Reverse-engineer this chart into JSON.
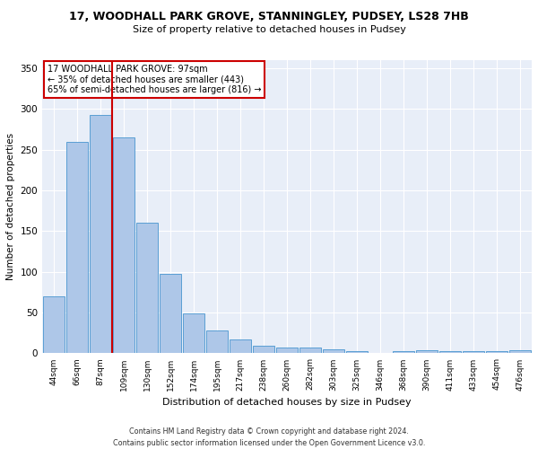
{
  "title_line1": "17, WOODHALL PARK GROVE, STANNINGLEY, PUDSEY, LS28 7HB",
  "title_line2": "Size of property relative to detached houses in Pudsey",
  "xlabel": "Distribution of detached houses by size in Pudsey",
  "ylabel": "Number of detached properties",
  "footnote": "Contains HM Land Registry data © Crown copyright and database right 2024.\nContains public sector information licensed under the Open Government Licence v3.0.",
  "bar_labels": [
    "44sqm",
    "66sqm",
    "87sqm",
    "109sqm",
    "130sqm",
    "152sqm",
    "174sqm",
    "195sqm",
    "217sqm",
    "238sqm",
    "260sqm",
    "282sqm",
    "303sqm",
    "325sqm",
    "346sqm",
    "368sqm",
    "390sqm",
    "411sqm",
    "433sqm",
    "454sqm",
    "476sqm"
  ],
  "bar_values": [
    70,
    260,
    293,
    265,
    160,
    98,
    49,
    28,
    17,
    9,
    7,
    7,
    5,
    3,
    0,
    3,
    4,
    3,
    3,
    3,
    4
  ],
  "bar_color": "#aec7e8",
  "bar_edge_color": "#5a9fd4",
  "annotation_line1": "17 WOODHALL PARK GROVE: 97sqm",
  "annotation_line2": "← 35% of detached houses are smaller (443)",
  "annotation_line3": "65% of semi-detached houses are larger (816) →",
  "vline_color": "#cc0000",
  "vline_x_index": 2.5,
  "annotation_box_color": "#ffffff",
  "annotation_box_edge": "#cc0000",
  "ylim": [
    0,
    360
  ],
  "yticks": [
    0,
    50,
    100,
    150,
    200,
    250,
    300,
    350
  ],
  "background_color": "#e8eef8"
}
